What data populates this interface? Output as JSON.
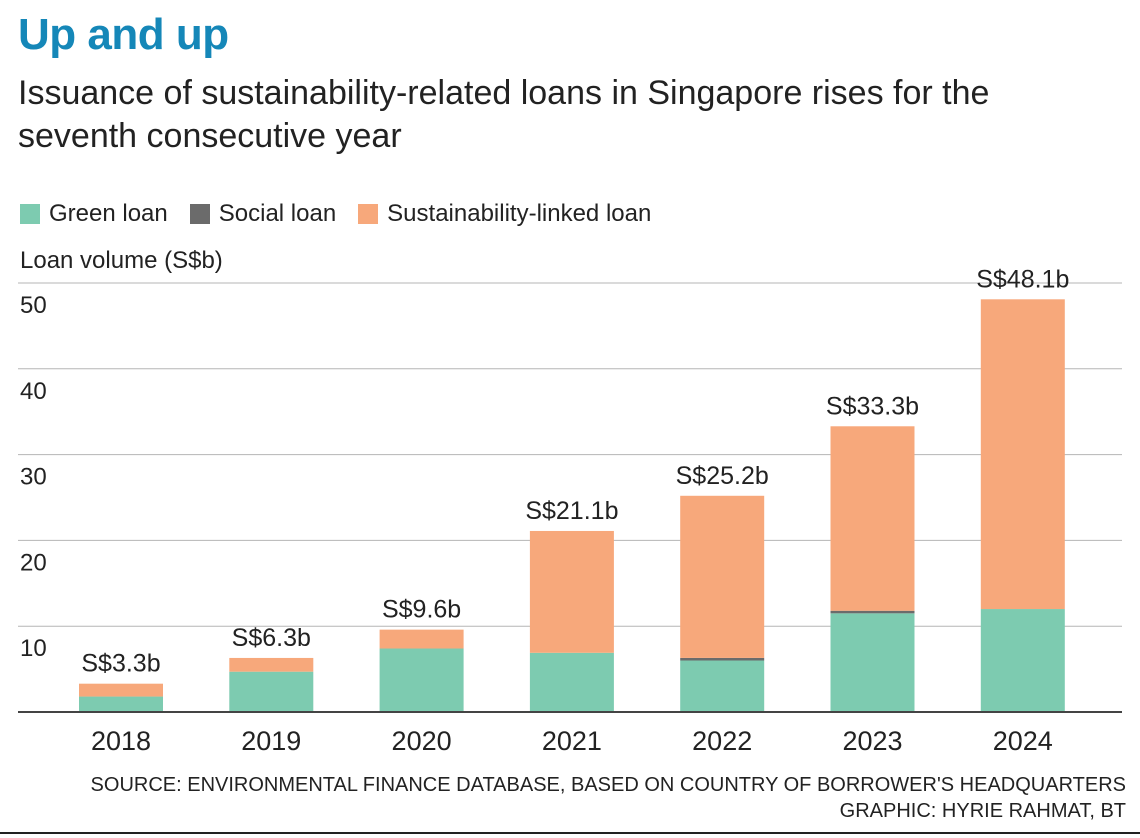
{
  "header": {
    "title": "Up and up",
    "subtitle": "Issuance of sustainability-related loans in Singapore rises for the seventh consecutive year"
  },
  "footer": {
    "source": "SOURCE: ENVIRONMENTAL FINANCE DATABASE, BASED ON COUNTRY OF BORROWER'S HEADQUARTERS",
    "credit": "GRAPHIC: HYRIE RAHMAT, BT"
  },
  "colors": {
    "title": "#1587b8",
    "green": "#7dcbb0",
    "social": "#6b6b6b",
    "sustainability": "#f7a87b",
    "grid": "#b5b5b5",
    "axis": "#444444"
  },
  "chart_data": {
    "type": "bar",
    "stacked": true,
    "title": "Up and up",
    "ylabel": "Loan volume (S$b)",
    "xlabel": "",
    "ylim": [
      0,
      50
    ],
    "yticks": [
      10,
      20,
      30,
      40,
      50
    ],
    "grid": true,
    "legend_position": "top-left",
    "categories": [
      "2018",
      "2019",
      "2020",
      "2021",
      "2022",
      "2023",
      "2024"
    ],
    "series": [
      {
        "name": "Green loan",
        "key": "green",
        "values": [
          1.8,
          4.7,
          7.4,
          6.9,
          6.0,
          11.5,
          12.0
        ]
      },
      {
        "name": "Social loan",
        "key": "social",
        "values": [
          0,
          0,
          0,
          0,
          0.3,
          0.3,
          0
        ]
      },
      {
        "name": "Sustainability-linked loan",
        "key": "sustainability",
        "values": [
          1.5,
          1.6,
          2.2,
          14.2,
          18.9,
          21.5,
          36.1
        ]
      }
    ],
    "totals": [
      3.3,
      6.3,
      9.6,
      21.1,
      25.2,
      33.3,
      48.1
    ],
    "total_labels": [
      "S$3.3b",
      "S$6.3b",
      "S$9.6b",
      "S$21.1b",
      "S$25.2b",
      "S$33.3b",
      "S$48.1b"
    ]
  }
}
